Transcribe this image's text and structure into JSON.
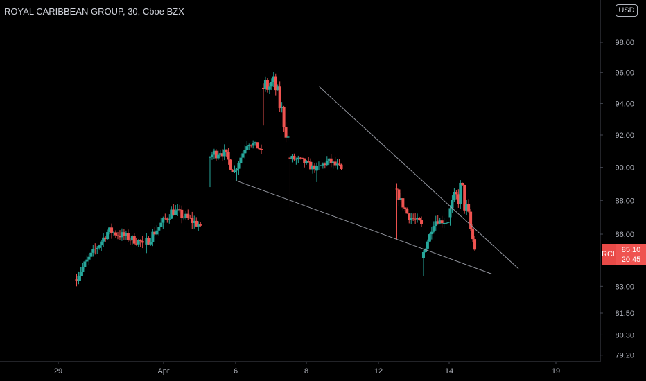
{
  "header": {
    "title": "ROYAL CARIBBEAN GROUP, 30, Cboe BZX",
    "currency": "USD"
  },
  "price_tag": {
    "symbol": "RCL",
    "price": "85.10",
    "countdown": "20:45"
  },
  "colors": {
    "background": "#000000",
    "up": "#26a69a",
    "down": "#ef5350",
    "trendline": "#9598a1",
    "axis_text": "#b2b5be"
  },
  "chart_data": {
    "type": "candlestick",
    "title": "ROYAL CARIBBEAN GROUP, 30, Cboe BZX",
    "ylabel": "",
    "xlabel": "",
    "yscale": "log",
    "ylim": [
      78.6,
      100.5
    ],
    "y_ticks": [
      "98.00",
      "96.00",
      "94.00",
      "92.00",
      "90.00",
      "88.00",
      "86.00",
      "83.00",
      "81.50",
      "80.30",
      "79.20"
    ],
    "x_ticks": [
      "29",
      "Apr",
      "6",
      "8",
      "12",
      "14",
      "19"
    ],
    "last_price": 85.1,
    "trendlines": [
      {
        "name": "upper",
        "from": [
          9.12,
          95.1
        ],
        "to": [
          16.6,
          84.0
        ]
      },
      {
        "name": "lower",
        "from": [
          6.0,
          89.2
        ],
        "to": [
          15.6,
          83.7
        ]
      }
    ],
    "sessions": [
      {
        "start": 0.0,
        "end": 2.55,
        "open": 83.4,
        "low_start": 83.0,
        "high_mid": 86.2,
        "close": 85.5
      },
      {
        "start": 2.62,
        "end": 4.72,
        "open": 85.4,
        "low_start": 84.9,
        "high_mid": 87.4,
        "close": 86.5
      },
      {
        "start": 5.0,
        "end": 6.0,
        "open": 90.6,
        "low_start": 88.8,
        "high_mid": 91.1,
        "close": 89.8
      },
      {
        "start": 6.0,
        "end": 7.0,
        "open": 89.8,
        "low_start": 89.2,
        "high_mid": 91.6,
        "close": 91.1
      },
      {
        "start": 7.0,
        "end": 8.0,
        "open": 95.0,
        "low_start": 92.6,
        "high_mid": 95.2,
        "close": 91.9
      },
      {
        "start": 8.0,
        "end": 9.0,
        "open": 90.6,
        "low_start": 87.6,
        "high_mid": 90.4,
        "close": 89.9
      },
      {
        "start": 9.0,
        "end": 10.0,
        "open": 89.8,
        "low_start": 89.1,
        "high_mid": 90.4,
        "close": 89.9
      },
      {
        "start": 12.0,
        "end": 13.0,
        "open": 88.7,
        "low_start": 85.7,
        "high_mid": 87.1,
        "close": 86.6
      },
      {
        "start": 13.0,
        "end": 14.0,
        "open": 84.6,
        "low_start": 83.6,
        "high_mid": 86.8,
        "close": 86.7
      },
      {
        "start": 14.0,
        "end": 15.0,
        "open": 87.0,
        "low_start": 86.5,
        "high_mid": 88.7,
        "close": 85.1
      }
    ]
  }
}
